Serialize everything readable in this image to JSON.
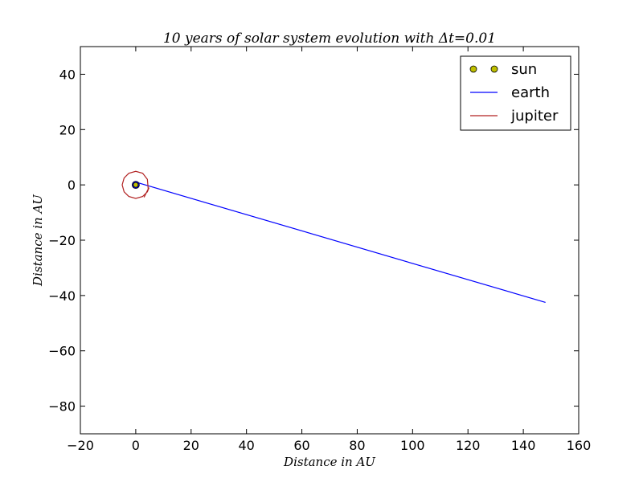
{
  "chart_data": {
    "type": "line",
    "title": "10 years of solar system evolution with Δt=0.01",
    "xlabel": "Distance in AU",
    "ylabel": "Distance in AU",
    "xlim": [
      -20,
      160
    ],
    "ylim": [
      -90,
      50
    ],
    "xticks": [
      -20,
      0,
      20,
      40,
      60,
      80,
      100,
      120,
      140,
      160
    ],
    "yticks": [
      40,
      20,
      0,
      -20,
      -40,
      -60,
      -80
    ],
    "xtick_labels": [
      "−20",
      "0",
      "20",
      "40",
      "60",
      "80",
      "100",
      "120",
      "140",
      "160"
    ],
    "ytick_labels": [
      "40",
      "20",
      "0",
      "−20",
      "−40",
      "−60",
      "−80"
    ],
    "grid": false,
    "legend_position": "top-right",
    "series": [
      {
        "name": "sun",
        "style": "markers",
        "color": "#bfbf00",
        "x": [
          0
        ],
        "y": [
          0
        ]
      },
      {
        "name": "earth",
        "style": "line",
        "color": "#0000ff",
        "x": [
          0,
          1,
          0,
          -1,
          0,
          148
        ],
        "y": [
          1,
          0,
          -1,
          0,
          1,
          -42.5
        ]
      },
      {
        "name": "jupiter",
        "style": "line",
        "color": "#b22222",
        "x": [
          3.0,
          4.5,
          4.2,
          2.5,
          0.0,
          -2.5,
          -4.2,
          -4.9,
          -4.2,
          -2.5,
          0.0,
          2.5,
          4.2,
          4.8
        ],
        "y": [
          -4.5,
          -1.5,
          2.0,
          4.2,
          4.9,
          4.2,
          2.5,
          0.0,
          -2.5,
          -4.2,
          -4.9,
          -4.2,
          -2.5,
          -1.0
        ]
      }
    ]
  }
}
